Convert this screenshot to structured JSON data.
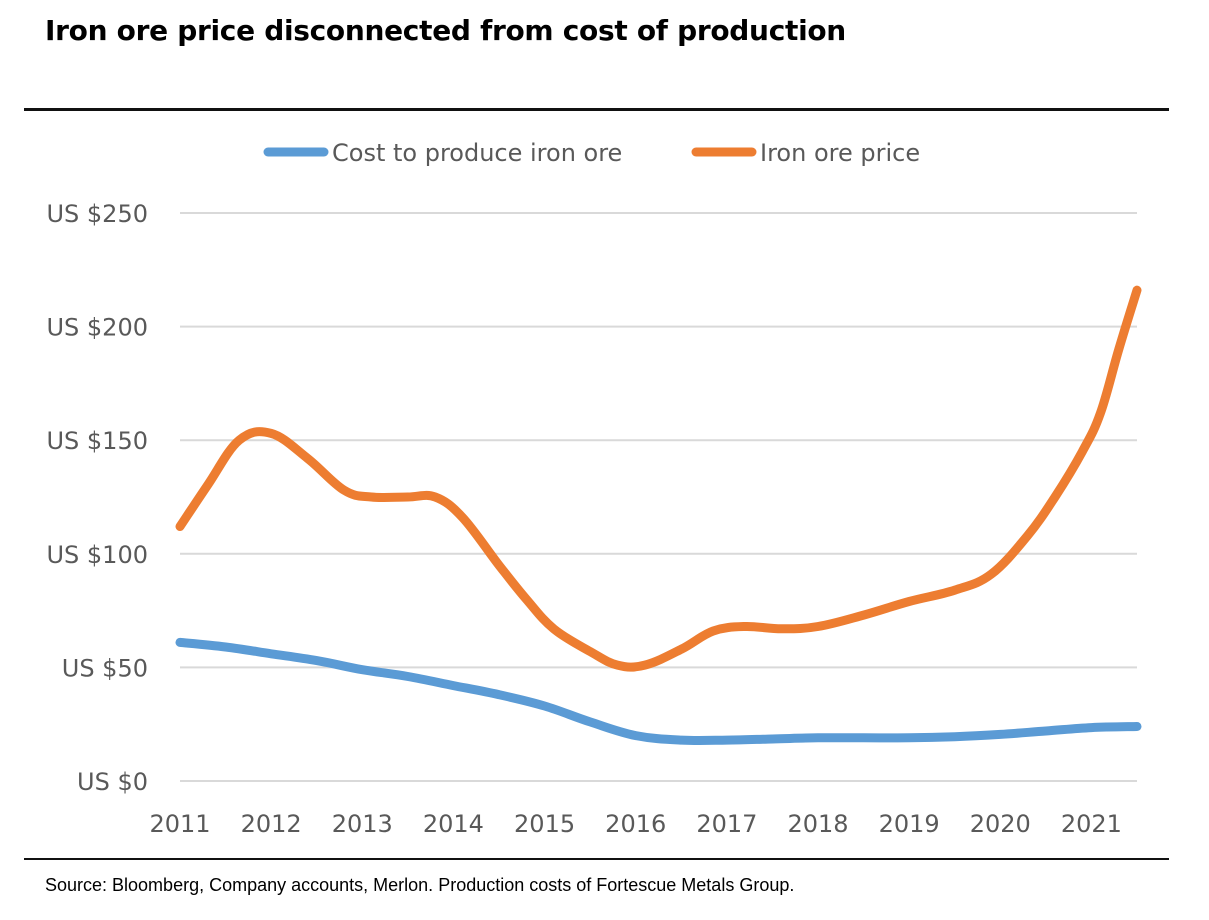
{
  "title": "Iron ore price disconnected from cost of production",
  "source": "Source: Bloomberg, Company accounts, Merlon. Production costs of Fortescue Metals Group.",
  "chart_data": {
    "type": "line",
    "title": "Iron ore price disconnected from cost of production",
    "xlabel": "",
    "ylabel": "",
    "x_ticks": [
      "2011",
      "2012",
      "2013",
      "2014",
      "2015",
      "2016",
      "2017",
      "2018",
      "2019",
      "2020",
      "2021"
    ],
    "y_ticks": [
      "US $0",
      "US $50",
      "US $100",
      "US $150",
      "US $200",
      "US $250"
    ],
    "xlim": [
      2011,
      2021.5
    ],
    "ylim": [
      0,
      250
    ],
    "grid": true,
    "legend_position": "top",
    "series": [
      {
        "name": "Cost to produce iron ore",
        "color": "#5B9BD5",
        "points": [
          [
            2011,
            61
          ],
          [
            2011.5,
            59
          ],
          [
            2012,
            56
          ],
          [
            2012.5,
            53
          ],
          [
            2013,
            49
          ],
          [
            2013.5,
            46
          ],
          [
            2014,
            42
          ],
          [
            2014.5,
            38
          ],
          [
            2015,
            33
          ],
          [
            2015.5,
            26
          ],
          [
            2016,
            20
          ],
          [
            2016.5,
            18
          ],
          [
            2017,
            18
          ],
          [
            2017.5,
            18.5
          ],
          [
            2018,
            19
          ],
          [
            2018.5,
            19
          ],
          [
            2019,
            19
          ],
          [
            2019.5,
            19.5
          ],
          [
            2020,
            20.5
          ],
          [
            2020.5,
            22
          ],
          [
            2021,
            23.5
          ],
          [
            2021.5,
            24
          ]
        ]
      },
      {
        "name": "Iron ore price",
        "color": "#ED7D31",
        "points": [
          [
            2011,
            112
          ],
          [
            2011.3,
            130
          ],
          [
            2011.65,
            150
          ],
          [
            2012,
            153
          ],
          [
            2012.4,
            142
          ],
          [
            2012.8,
            128
          ],
          [
            2013.1,
            125
          ],
          [
            2013.5,
            125
          ],
          [
            2013.8,
            125
          ],
          [
            2014.1,
            116
          ],
          [
            2014.5,
            95
          ],
          [
            2014.8,
            80
          ],
          [
            2015.1,
            67
          ],
          [
            2015.5,
            57
          ],
          [
            2015.8,
            51
          ],
          [
            2016.1,
            51
          ],
          [
            2016.5,
            58
          ],
          [
            2016.85,
            66
          ],
          [
            2017.2,
            68
          ],
          [
            2017.6,
            67
          ],
          [
            2018,
            68
          ],
          [
            2018.5,
            73
          ],
          [
            2019,
            79
          ],
          [
            2019.5,
            84
          ],
          [
            2019.9,
            91
          ],
          [
            2020.3,
            108
          ],
          [
            2020.6,
            125
          ],
          [
            2020.9,
            145
          ],
          [
            2021.1,
            162
          ],
          [
            2021.3,
            190
          ],
          [
            2021.5,
            216
          ]
        ]
      }
    ]
  }
}
